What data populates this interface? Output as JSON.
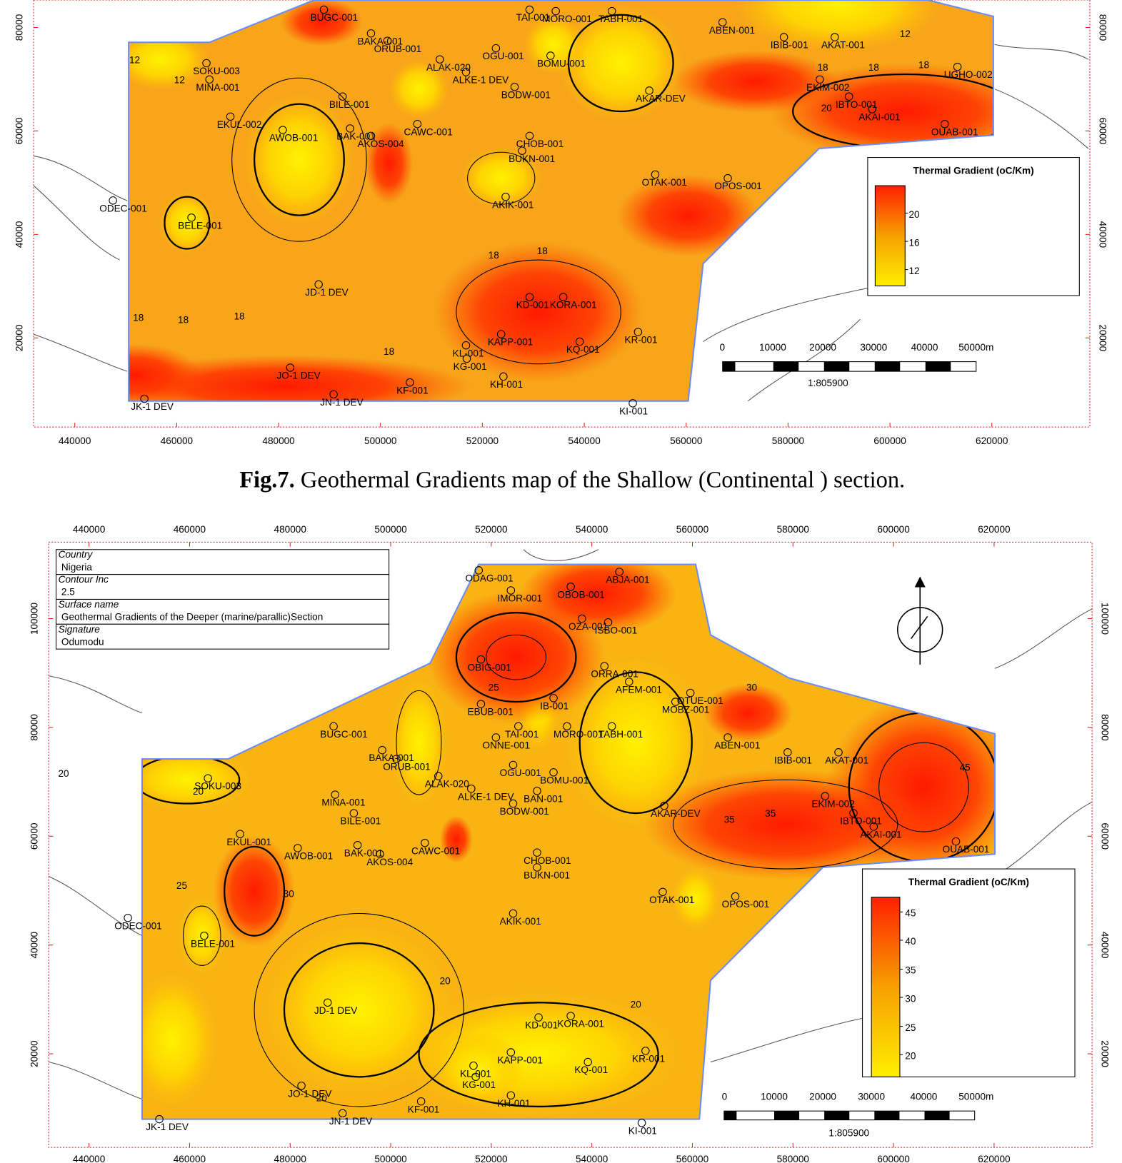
{
  "maps": [
    {
      "x_ticks": [
        440000,
        460000,
        480000,
        500000,
        520000,
        540000,
        560000,
        580000,
        600000,
        620000
      ],
      "y_ticks": [
        20000,
        40000,
        60000,
        80000
      ],
      "legend": {
        "title": "Thermal Gradient (oC/Km)",
        "ticks": [
          20,
          16,
          12
        ]
      },
      "scale_bar": {
        "labels": [
          "0",
          "10000",
          "20000",
          "30000",
          "40000",
          "50000m"
        ],
        "ratio": "1:805900"
      },
      "wells": [
        "BUGC-001",
        "BAKA-001",
        "ORUB-001",
        "TAI-001",
        "MORO-001",
        "TABH-001",
        "ABEN-001",
        "IBIB-001",
        "AKAT-001",
        "UGHO-002",
        "SOKU-003",
        "OGU-001",
        "ALAK-020",
        "BOMU-001",
        "ALKE-1 DEV",
        "BODW-001",
        "AKAR-DEV",
        "EKIM-002",
        "MINA-001",
        "BILE-001",
        "IBTO-001",
        "AKAI-001",
        "OUAB-001",
        "EKUL-002",
        "AWOB-001",
        "BAK-001",
        "AKOS-004",
        "CAWC-001",
        "CHOB-001",
        "BUKN-001",
        "OTAK-001",
        "OPOS-001",
        "ODEC-001",
        "BELE-001",
        "AKIK-001",
        "JD-1 DEV",
        "KD-001",
        "KORA-001",
        "KAPP-001",
        "KQ-001",
        "KR-001",
        "KL-001",
        "KG-001",
        "KH-001",
        "KF-001",
        "JO-1 DEV",
        "JN-1 DEV",
        "JK-1 DEV",
        "KI-001"
      ],
      "contour_labels": [
        12,
        12,
        12,
        18,
        18,
        18,
        18,
        18,
        18,
        18,
        18,
        18,
        20
      ]
    },
    {
      "x_ticks": [
        440000,
        460000,
        480000,
        500000,
        520000,
        540000,
        560000,
        580000,
        600000,
        620000
      ],
      "y_ticks": [
        20000,
        40000,
        60000,
        80000,
        100000
      ],
      "legend": {
        "title": "Thermal Gradient (oC/Km)",
        "ticks": [
          45,
          40,
          35,
          30,
          25,
          20
        ]
      },
      "scale_bar": {
        "labels": [
          "0",
          "10000",
          "20000",
          "30000",
          "40000",
          "50000m"
        ],
        "ratio": "1:805900"
      },
      "info_box": [
        [
          "Country",
          "Nigeria"
        ],
        [
          "Contour Inc",
          "2.5"
        ],
        [
          "Surface name",
          "Geothermal Gradients of the Deeper (marine/parallic)Section"
        ],
        [
          "Signature",
          "Odumodu"
        ]
      ],
      "wells": [
        "ODAG-001",
        "ABJA-001",
        "IMOR-001",
        "OBOB-001",
        "OZA-001",
        "ISBO-001",
        "OBIG-001",
        "ORRA-001",
        "AFEM-001",
        "OTUE-001",
        "MOBZ-001",
        "EBUB-001",
        "IB-001",
        "TAI-001",
        "MORO-001",
        "TABH-001",
        "BUGC-001",
        "ABEN-001",
        "IBIB-001",
        "AKAT-001",
        "BAKA-001",
        "ORUB-001",
        "ONNE-001",
        "OGU-001",
        "ALAK-020",
        "BOMU-001",
        "SOKU-003",
        "ALKE-1 DEV",
        "BAN-001",
        "MINA-001",
        "BILE-001",
        "BODW-001",
        "AKAR-DEV",
        "EKIM-002",
        "IBTO-001",
        "AKAI-001",
        "EKUL-001",
        "AWOB-001",
        "BAK-001",
        "AKOS-004",
        "CAWC-001",
        "OUAB-001",
        "CHOB-001",
        "BUKN-001",
        "OTAK-001",
        "OPOS-001",
        "ODEC-001",
        "AKIK-001",
        "BELE-001",
        "JD-1 DEV",
        "KD-001",
        "KORA-001",
        "KAPP-001",
        "KQ-001",
        "KR-001",
        "KL-001",
        "KG-001",
        "JO-1 DEV",
        "KH-001",
        "KF-001",
        "JN-1 DEV",
        "JK-1 DEV",
        "KI-001"
      ],
      "contour_labels": [
        20,
        20,
        25,
        30,
        20,
        20,
        20,
        35,
        35,
        45,
        25,
        30
      ]
    }
  ],
  "caption": {
    "label": "Fig.7.",
    "text": "Geothermal Gradients map of the Shallow (Continental ) section."
  }
}
